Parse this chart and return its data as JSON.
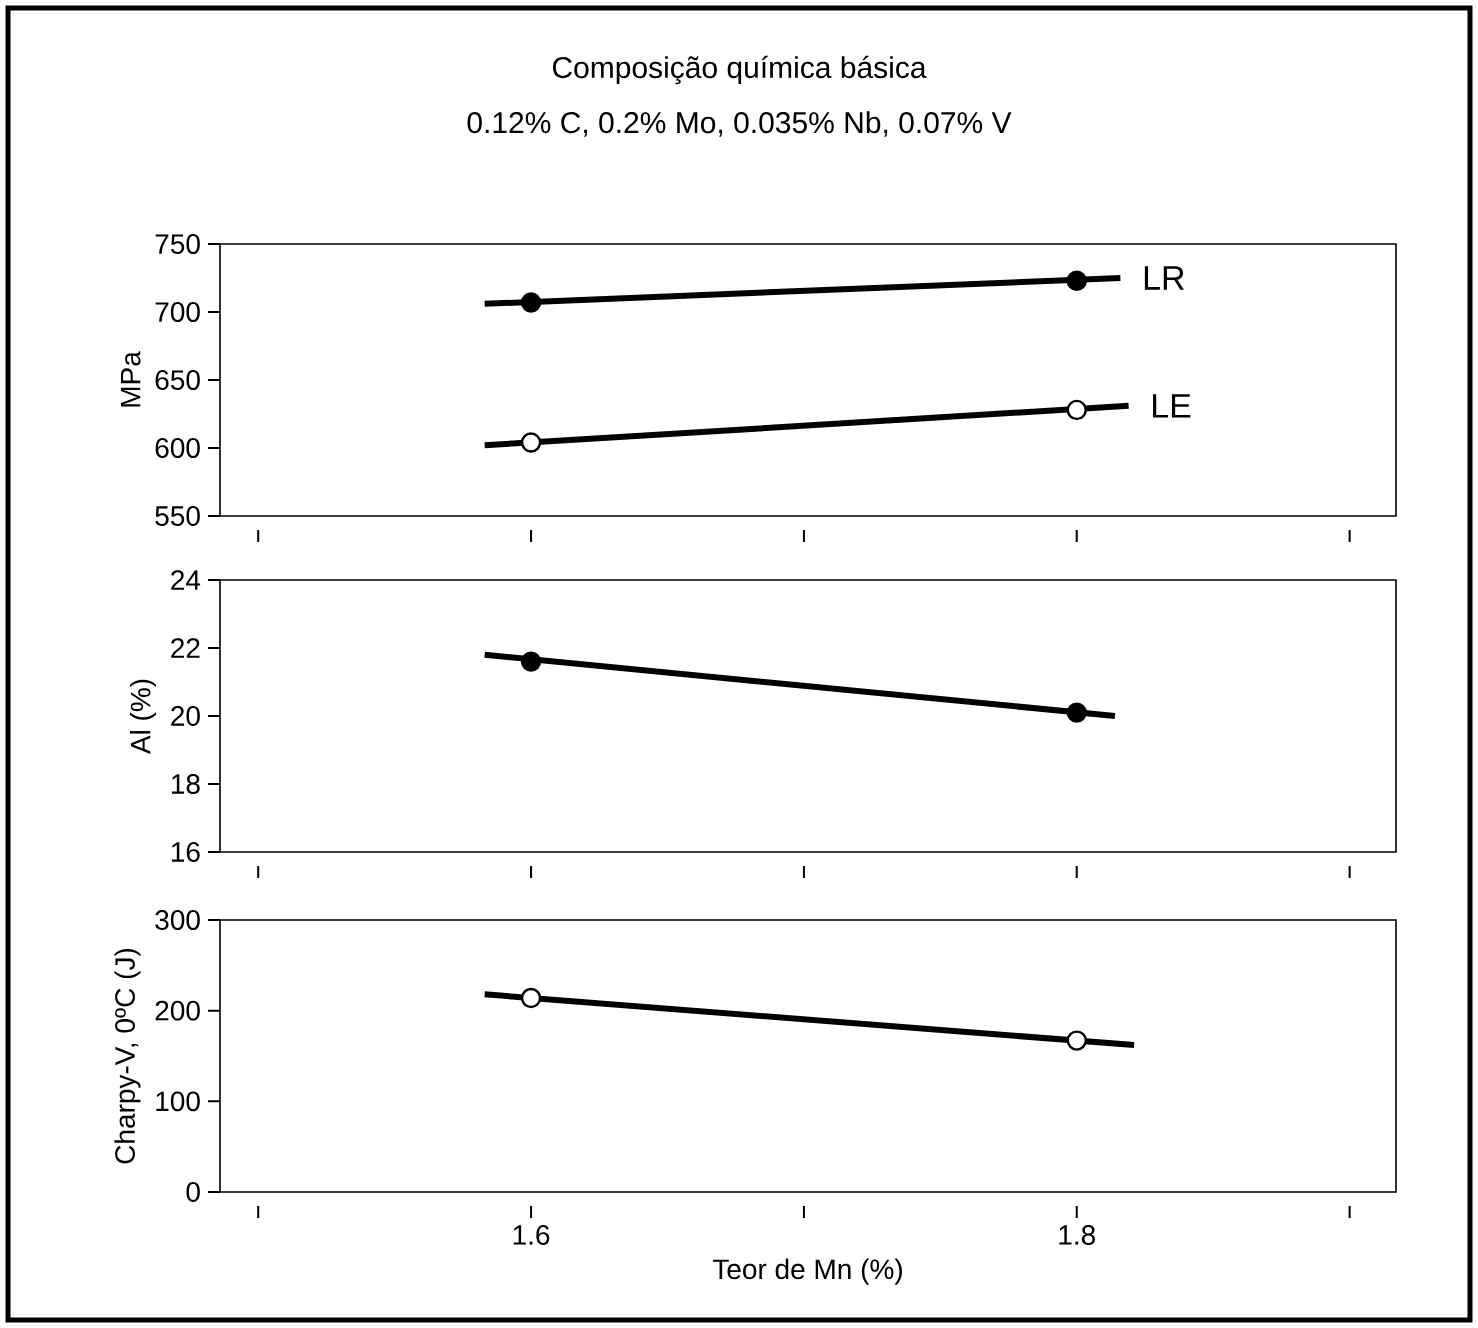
{
  "chart_data": [
    {
      "type": "line",
      "title": "Composição química básica",
      "subtitle": "0.12% C, 0.2% Mo, 0.035% Nb, 0.07% V",
      "ylabel": "MPa",
      "xlim": [
        1.486,
        1.917
      ],
      "xticks": [
        {
          "value": 1.5,
          "label": null
        },
        {
          "value": 1.6,
          "label": null
        },
        {
          "value": 1.7,
          "label": null
        },
        {
          "value": 1.8,
          "label": null
        },
        {
          "value": 1.9,
          "label": null
        }
      ],
      "ylim": [
        550,
        750
      ],
      "yticks": [
        550,
        600,
        650,
        700,
        750
      ],
      "grid": false,
      "tick_labels": "y",
      "series": [
        {
          "type": "line",
          "name": "LR",
          "marker": "none",
          "color": "#000000",
          "x": [
            1.583,
            1.816
          ],
          "values": [
            706,
            725
          ]
        },
        {
          "type": "scatter",
          "marker": "circle",
          "color": "#000000",
          "x": [
            1.6,
            1.8
          ],
          "values": [
            707,
            723
          ]
        },
        {
          "type": "line",
          "name": "LE",
          "marker": "none",
          "color": "#000000",
          "x": [
            1.583,
            1.819
          ],
          "values": [
            602,
            631
          ]
        },
        {
          "type": "scatter",
          "marker": "circle",
          "color": "#ffffff",
          "x": [
            1.6,
            1.8
          ],
          "values": [
            604,
            628
          ]
        }
      ]
    },
    {
      "type": "line",
      "ylabel": "Al (%)",
      "xlim": [
        1.486,
        1.917
      ],
      "xticks": [
        {
          "value": 1.5,
          "label": null
        },
        {
          "value": 1.6,
          "label": null
        },
        {
          "value": 1.7,
          "label": null
        },
        {
          "value": 1.8,
          "label": null
        },
        {
          "value": 1.9,
          "label": null
        }
      ],
      "ylim": [
        16,
        24
      ],
      "yticks": [
        16,
        18,
        20,
        22,
        24
      ],
      "grid": false,
      "tick_labels": "y",
      "series": [
        {
          "type": "line",
          "marker": "none",
          "color": "#000000",
          "x": [
            1.583,
            1.814
          ],
          "values": [
            21.8,
            20.0
          ]
        },
        {
          "type": "scatter",
          "marker": "circle",
          "color": "#000000",
          "x": [
            1.6,
            1.8
          ],
          "values": [
            21.6,
            20.1
          ]
        }
      ]
    },
    {
      "type": "line",
      "ylabel": "Charpy-V, 0ºC (J)",
      "xlabel": "Teor de Mn (%)",
      "xlim": [
        1.486,
        1.917
      ],
      "xticks": [
        {
          "value": 1.5,
          "label": null
        },
        1.6,
        {
          "value": 1.7,
          "label": null
        },
        1.8,
        {
          "value": 1.9,
          "label": null
        }
      ],
      "ylim": [
        0,
        300
      ],
      "yticks": [
        0,
        100,
        200,
        300
      ],
      "grid": false,
      "series": [
        {
          "type": "line",
          "marker": "none",
          "color": "#000000",
          "x": [
            1.583,
            1.821
          ],
          "values": [
            218,
            162
          ]
        },
        {
          "type": "scatter",
          "marker": "circle",
          "color": "#ffffff",
          "x": [
            1.6,
            1.8
          ],
          "values": [
            214,
            167
          ]
        }
      ]
    }
  ]
}
